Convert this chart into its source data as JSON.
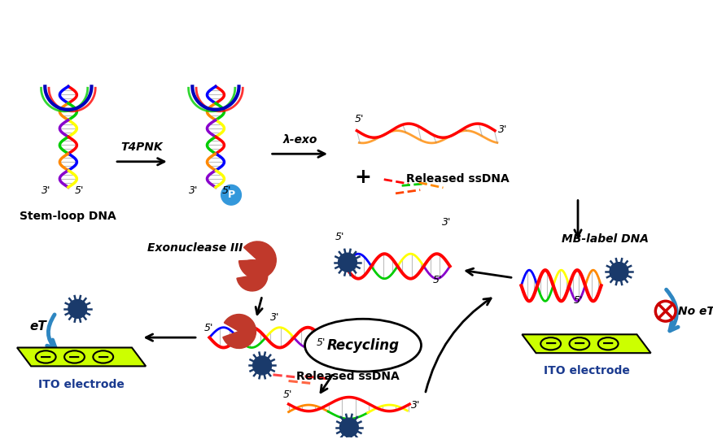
{
  "bg_color": "#ffffff",
  "labels": {
    "stem_loop_dna": "Stem-loop DNA",
    "t4pnk": "T4PNK",
    "lambda_exo": "λ-exo",
    "released_ssdna": "Released ssDNA",
    "mb_label_dna": "MB-label DNA",
    "no_et": "No eT",
    "et": "eT",
    "ito_electrode": "ITO electrode",
    "exonuclease_iii": "Exonuclease III",
    "recycling": "Recycling",
    "p_label": "P"
  },
  "colors": {
    "yellow_electrode": "#ccff00",
    "red_dna": "#ff0000",
    "blue_dark": "#1a3a6b",
    "arrow_blue": "#2e86c1",
    "arrow_black": "#000000",
    "pac_man_red": "#c0392b",
    "no_et_red": "#cc0000",
    "green_dna": "#00cc00",
    "orange_dna": "#ff8800",
    "purple_dna": "#8800cc",
    "blue_strand": "#0000ff",
    "phosphate_blue": "#3498db",
    "ito_label_blue": "#1a3a8f"
  }
}
